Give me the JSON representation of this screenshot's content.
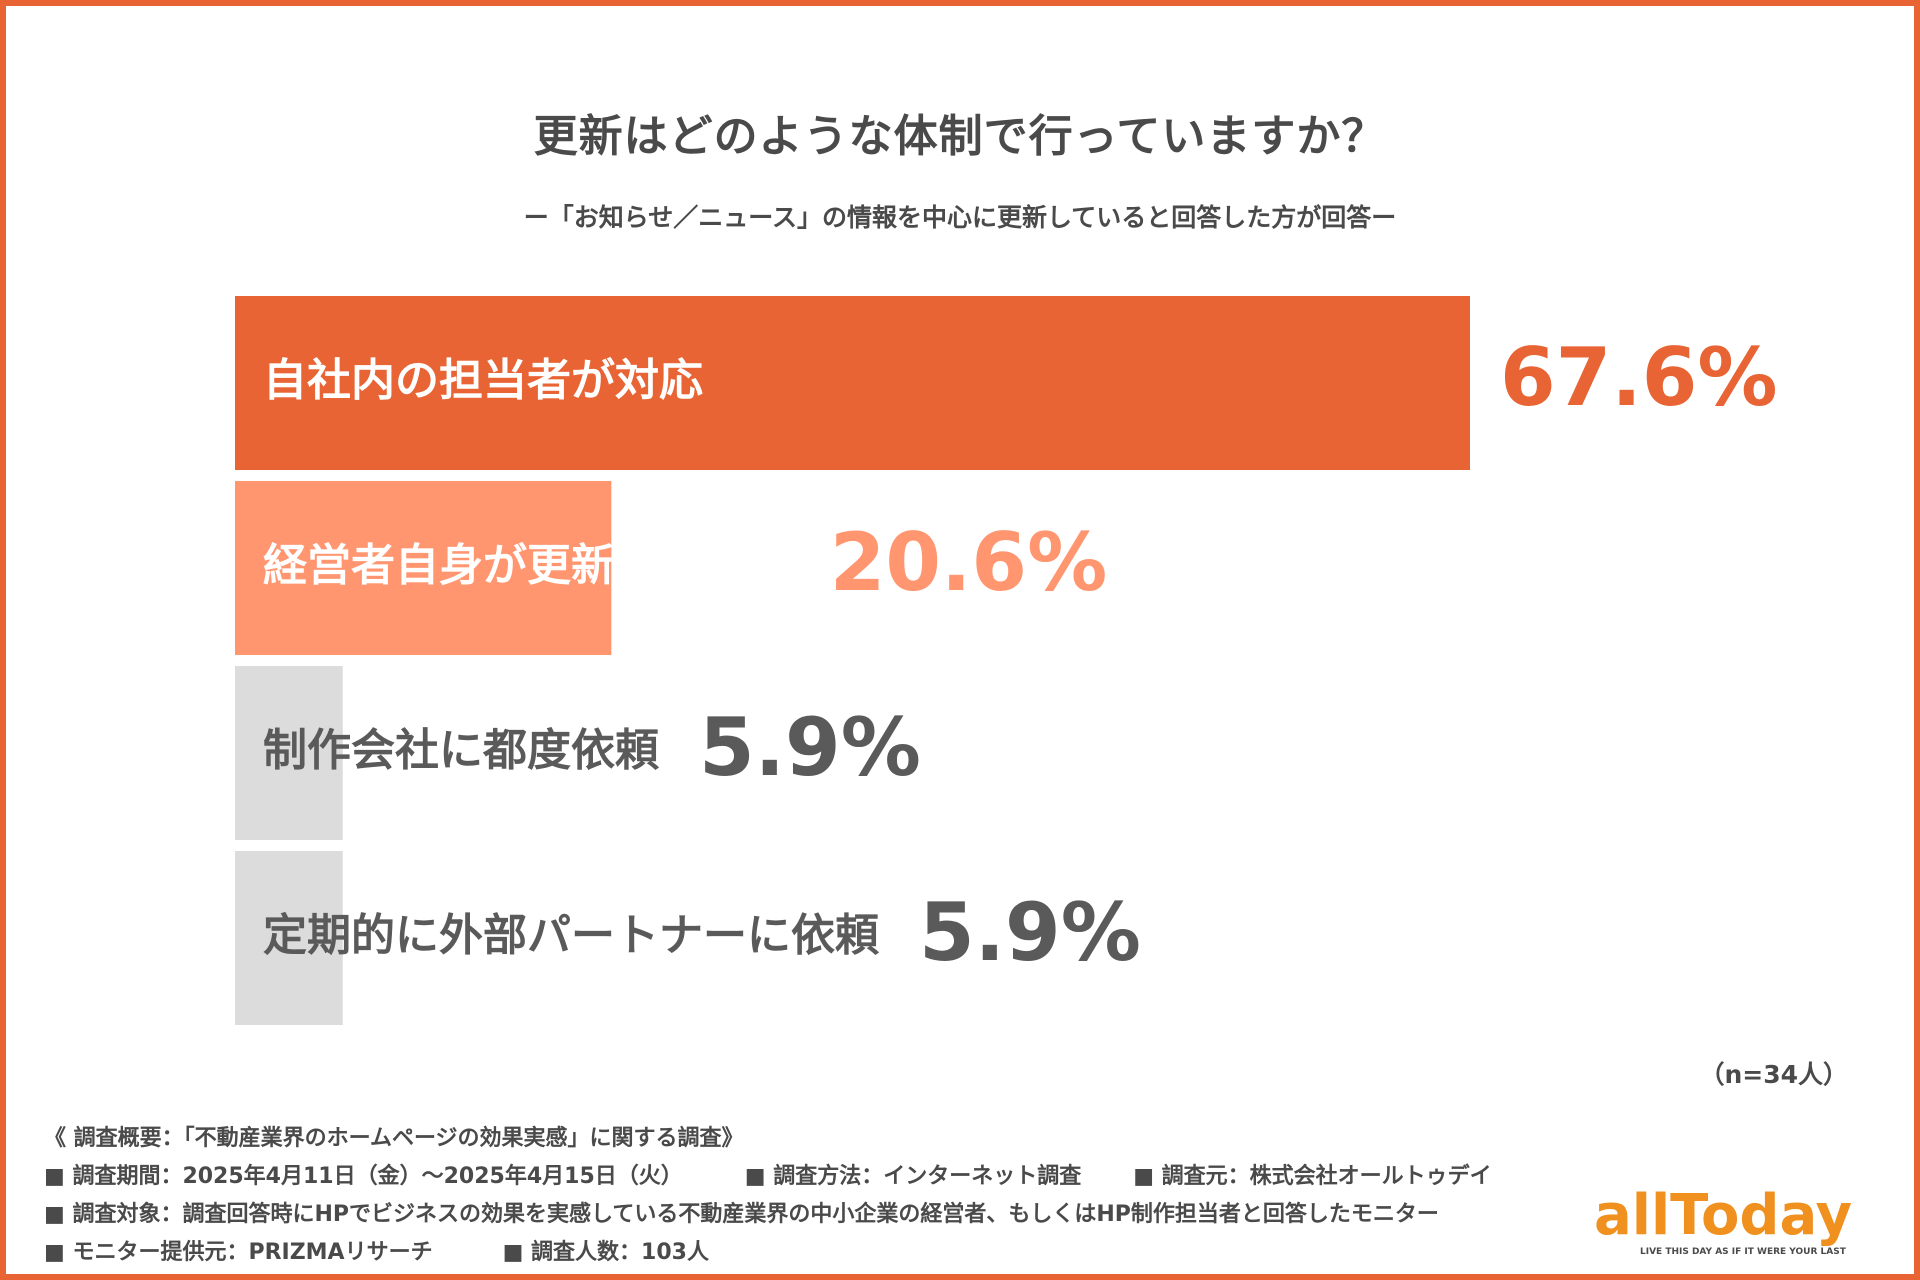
{
  "header": {
    "title": "更新はどのような体制で行っていますか？",
    "subtitle": "ー「お知らせ／ニュース」の情報を中心に更新していると回答した方が回答ー"
  },
  "chart_data": {
    "type": "bar",
    "orientation": "horizontal",
    "categories": [
      "自社内の担当者が対応",
      "経営者自身が更新している",
      "制作会社に都度依頼",
      "定期的に外部パートナーに依頼"
    ],
    "values": [
      67.6,
      20.6,
      5.9,
      5.9
    ],
    "value_labels": [
      "67.6%",
      "20.6%",
      "5.9%",
      "5.9%"
    ],
    "colors": [
      "#e86434",
      "#ff9670",
      "#dcdcdc",
      "#dcdcdc"
    ],
    "label_colors": [
      "#ffffff",
      "#ffffff",
      "#5a5a5a",
      "#5a5a5a"
    ],
    "value_colors": [
      "#e86434",
      "#ff9670",
      "#5a5a5a",
      "#5a5a5a"
    ],
    "xlim": [
      0,
      67.6
    ],
    "grid": false,
    "legend": "none"
  },
  "sample": {
    "n_label": "（n=34人）"
  },
  "notes": {
    "line1": "《 調査概要：「不動産業界のホームページの効果実感」に関する調査》",
    "period": "■ 調査期間：2025年4月11日（金）〜2025年4月15日（火）",
    "method": "■ 調査方法：インターネット調査",
    "source": "■ 調査元：株式会社オールトゥデイ",
    "target": "■ 調査対象：調査回答時にHPでビジネスの効果を実感している不動産業界の中小企業の経営者、もしくはHP制作担当者と回答したモニター",
    "provider": "■ モニター提供元：PRIZMAリサーチ",
    "count": "■ 調査人数：103人"
  },
  "logo": {
    "wordmark": "allToday",
    "tagline": "LIVE THIS DAY AS IF IT WERE YOUR LAST",
    "color": "#f0901e"
  }
}
